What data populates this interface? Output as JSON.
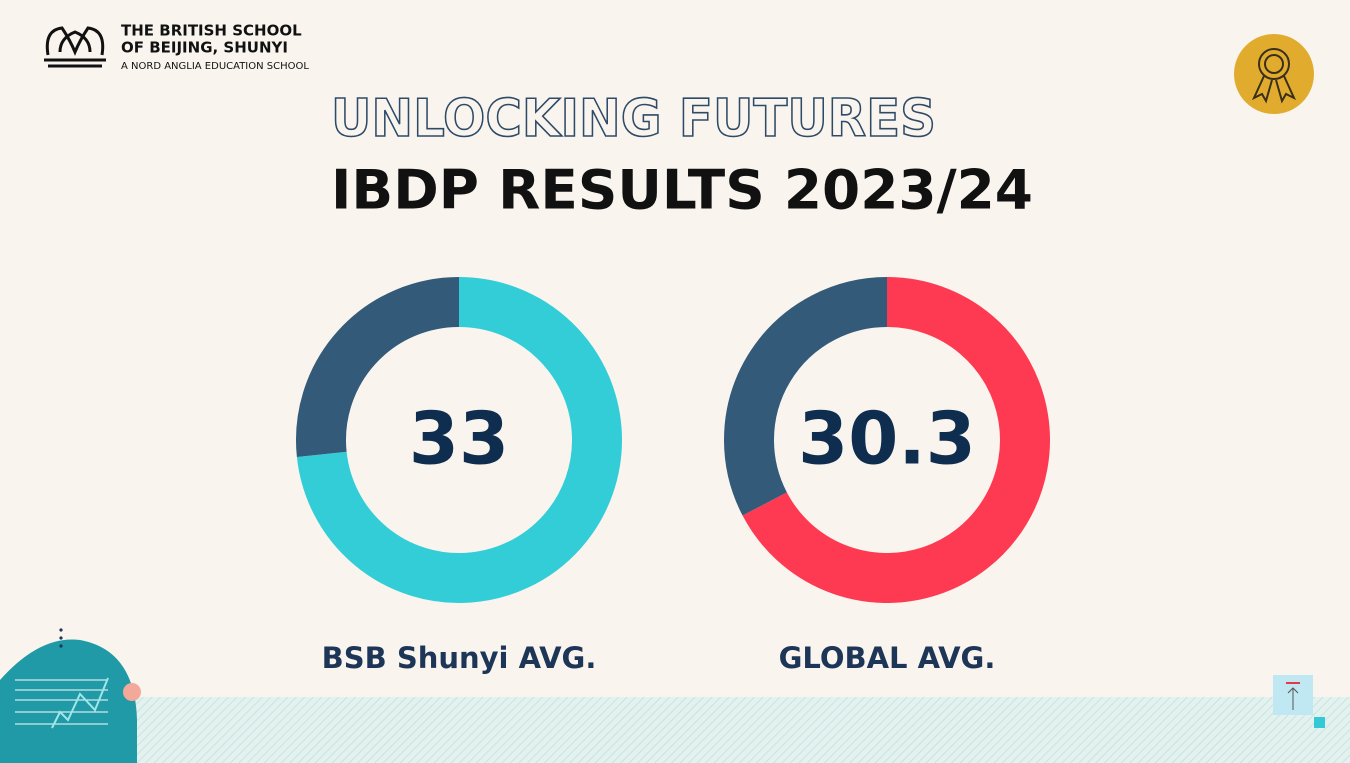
{
  "header": {
    "school_line1": "THE BRITISH SCHOOL",
    "school_line2": "OF BEIJING, SHUNYI",
    "school_line3": "A NORD ANGLIA EDUCATION SCHOOL"
  },
  "title_line1": "UNLOCKING FUTURES",
  "title_line2": "IBDP RESULTS 2023/24",
  "chart_data": [
    {
      "type": "donut",
      "label": "BSB Shunyi AVG.",
      "values": [
        33,
        12
      ],
      "colors": [
        "#33cdd8",
        "#335a78"
      ]
    },
    {
      "type": "donut",
      "label": "GLOBAL AVG.",
      "values": [
        30.3,
        14.7
      ],
      "colors": [
        "#fe3a52",
        "#335a78"
      ]
    }
  ]
}
